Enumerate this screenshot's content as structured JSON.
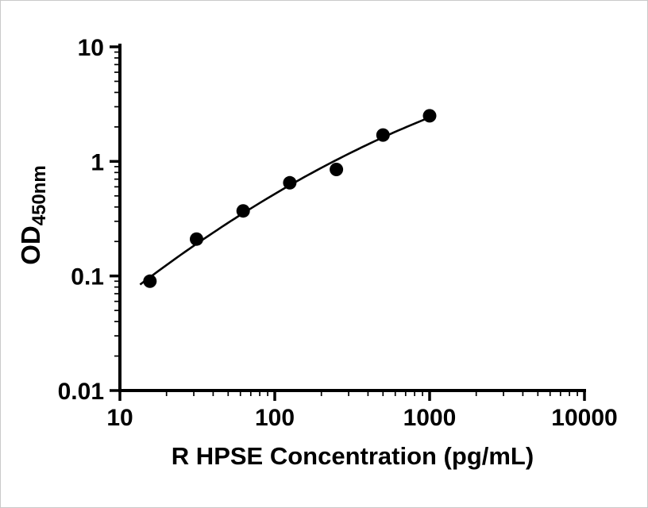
{
  "chart_data": {
    "type": "scatter",
    "title": "",
    "xlabel": "R HPSE Concentration (pg/mL)",
    "ylabel": "OD450nm",
    "ylabel_main": "OD",
    "ylabel_sub": "450nm",
    "x_scale": "log10",
    "y_scale": "log10",
    "xlim": [
      10,
      10000
    ],
    "ylim": [
      0.01,
      10
    ],
    "x_ticks": [
      10,
      100,
      1000,
      10000
    ],
    "x_tick_labels": [
      "10",
      "100",
      "1000",
      "10000"
    ],
    "y_ticks": [
      10,
      1,
      0.1,
      0.01
    ],
    "y_tick_labels": [
      "10",
      "1",
      "0.1",
      "0.01"
    ],
    "minor_ticks": "log decade multiples 2-9 on both axes",
    "grid": false,
    "legend": false,
    "marker_color": "#000000",
    "line_color": "#000000",
    "x": [
      15.625,
      31.25,
      62.5,
      125,
      250,
      500,
      1000
    ],
    "y": [
      0.09,
      0.21,
      0.37,
      0.65,
      0.85,
      1.7,
      2.5
    ],
    "fit_curve": {
      "type": "quadratic_loglog",
      "equation": "log10(y) = a + b*log10(x) + c*log10(x)^2",
      "a": -2.3955,
      "b": 1.314,
      "c": -0.1292,
      "x_range": [
        13.5,
        1000
      ]
    }
  }
}
